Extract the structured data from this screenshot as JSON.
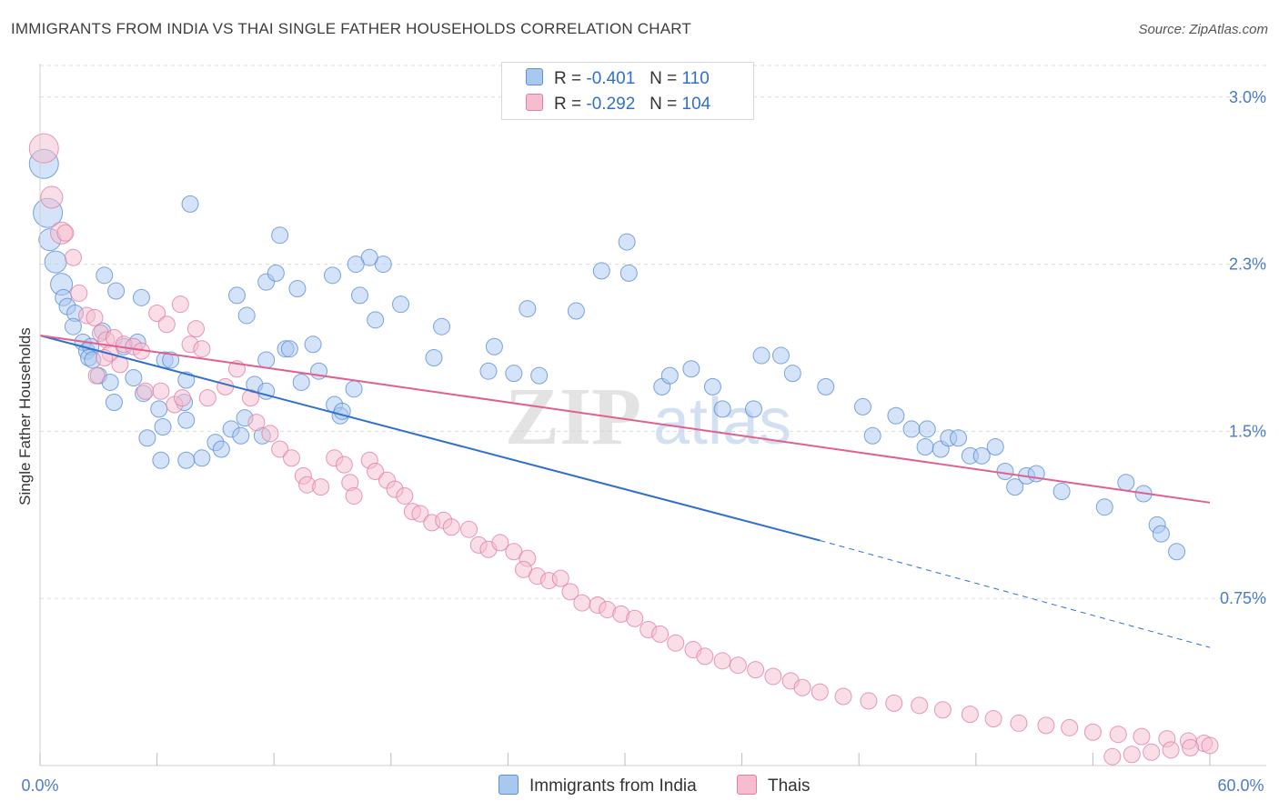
{
  "header": {
    "title": "IMMIGRANTS FROM INDIA VS THAI SINGLE FATHER HOUSEHOLDS CORRELATION CHART",
    "source": "Source: ZipAtlas.com"
  },
  "legend": {
    "series1": {
      "r_label": "R =",
      "r_value": "-0.401",
      "n_label": "N =",
      "n_value": "110"
    },
    "series2": {
      "r_label": "R =",
      "r_value": "-0.292",
      "n_label": "N =",
      "n_value": "104"
    }
  },
  "colors": {
    "india_fill": "#a9c8f0",
    "india_stroke": "#5b8fd6",
    "india_line": "#2e6fd0",
    "thai_fill": "#f6bdd0",
    "thai_stroke": "#e07fa3",
    "thai_line": "#e0608f",
    "axis_text": "#4a7cc9"
  },
  "chart_data": {
    "type": "scatter",
    "title": "IMMIGRANTS FROM INDIA VS THAI SINGLE FATHER HOUSEHOLDS CORRELATION CHART",
    "xlabel": "",
    "ylabel": "Single Father Households",
    "xlim": [
      0,
      60
    ],
    "ylim": [
      0,
      3.15
    ],
    "x_tick_labels": [
      "0.0%",
      "60.0%"
    ],
    "y_ticks": [
      0.75,
      1.5,
      2.25,
      3.0
    ],
    "y_tick_labels": [
      "0.75%",
      "1.5%",
      "2.3%",
      "3.0%"
    ],
    "grid": true,
    "legend_position": "top-center",
    "watermark": "ZIPatlas",
    "series": [
      {
        "name": "Immigrants from India",
        "color": "#a9c8f0",
        "R": -0.401,
        "N": 110,
        "trend": {
          "x": [
            0,
            40
          ],
          "y": [
            1.93,
            1.01
          ],
          "dashed_to": [
            60,
            0.53
          ]
        },
        "points": [
          [
            0.2,
            2.7
          ],
          [
            0.4,
            2.48
          ],
          [
            0.5,
            2.36
          ],
          [
            0.8,
            2.26
          ],
          [
            1.1,
            2.16
          ],
          [
            1.2,
            2.1
          ],
          [
            1.4,
            2.06
          ],
          [
            1.8,
            2.03
          ],
          [
            1.7,
            1.97
          ],
          [
            2.2,
            1.9
          ],
          [
            2.4,
            1.86
          ],
          [
            2.6,
            1.88
          ],
          [
            3.3,
            2.2
          ],
          [
            3.9,
            2.13
          ],
          [
            3.2,
            1.95
          ],
          [
            2.5,
            1.83
          ],
          [
            2.7,
            1.82
          ],
          [
            4.3,
            1.88
          ],
          [
            5.2,
            2.1
          ],
          [
            5.0,
            1.9
          ],
          [
            6.4,
            1.82
          ],
          [
            6.7,
            1.82
          ],
          [
            7.5,
            1.73
          ],
          [
            3.0,
            1.75
          ],
          [
            3.6,
            1.72
          ],
          [
            3.8,
            1.63
          ],
          [
            4.8,
            1.74
          ],
          [
            5.3,
            1.67
          ],
          [
            6.1,
            1.6
          ],
          [
            7.4,
            1.63
          ],
          [
            7.5,
            1.55
          ],
          [
            8.3,
            1.38
          ],
          [
            6.3,
            1.52
          ],
          [
            6.2,
            1.37
          ],
          [
            5.5,
            1.47
          ],
          [
            7.5,
            1.37
          ],
          [
            9.0,
            1.45
          ],
          [
            9.3,
            1.42
          ],
          [
            9.8,
            1.51
          ],
          [
            10.3,
            1.48
          ],
          [
            11.4,
            1.48
          ],
          [
            10.5,
            1.56
          ],
          [
            11.0,
            1.71
          ],
          [
            11.6,
            1.68
          ],
          [
            11.6,
            1.82
          ],
          [
            12.6,
            1.87
          ],
          [
            12.8,
            1.87
          ],
          [
            13.4,
            1.72
          ],
          [
            14.3,
            1.77
          ],
          [
            14.0,
            1.89
          ],
          [
            15.1,
            1.62
          ],
          [
            15.4,
            1.57
          ],
          [
            16.1,
            1.69
          ],
          [
            15.5,
            1.59
          ],
          [
            17.2,
            2.0
          ],
          [
            17.6,
            2.25
          ],
          [
            16.9,
            2.28
          ],
          [
            16.2,
            2.25
          ],
          [
            12.3,
            2.38
          ],
          [
            7.7,
            2.52
          ],
          [
            10.1,
            2.11
          ],
          [
            10.6,
            2.02
          ],
          [
            11.6,
            2.17
          ],
          [
            12.1,
            2.21
          ],
          [
            13.2,
            2.14
          ],
          [
            15.0,
            2.2
          ],
          [
            16.4,
            2.11
          ],
          [
            18.5,
            2.07
          ],
          [
            20.2,
            1.83
          ],
          [
            20.6,
            1.97
          ],
          [
            23.0,
            1.77
          ],
          [
            23.3,
            1.88
          ],
          [
            24.3,
            1.76
          ],
          [
            25.6,
            1.75
          ],
          [
            25.0,
            2.05
          ],
          [
            27.5,
            2.04
          ],
          [
            28.8,
            2.22
          ],
          [
            30.1,
            2.35
          ],
          [
            30.2,
            2.21
          ],
          [
            31.9,
            1.7
          ],
          [
            33.4,
            1.78
          ],
          [
            32.3,
            1.75
          ],
          [
            34.5,
            1.7
          ],
          [
            35.0,
            1.6
          ],
          [
            36.6,
            1.6
          ],
          [
            37.0,
            1.84
          ],
          [
            38.0,
            1.84
          ],
          [
            38.6,
            1.76
          ],
          [
            40.3,
            1.7
          ],
          [
            42.2,
            1.61
          ],
          [
            42.7,
            1.48
          ],
          [
            43.9,
            1.57
          ],
          [
            44.7,
            1.51
          ],
          [
            45.5,
            1.51
          ],
          [
            45.4,
            1.43
          ],
          [
            46.2,
            1.42
          ],
          [
            46.6,
            1.47
          ],
          [
            47.1,
            1.47
          ],
          [
            47.7,
            1.39
          ],
          [
            48.3,
            1.39
          ],
          [
            49.0,
            1.43
          ],
          [
            49.5,
            1.32
          ],
          [
            50.0,
            1.25
          ],
          [
            50.6,
            1.3
          ],
          [
            51.1,
            1.31
          ],
          [
            52.4,
            1.23
          ],
          [
            54.6,
            1.16
          ],
          [
            55.7,
            1.27
          ],
          [
            56.6,
            1.22
          ],
          [
            57.3,
            1.08
          ],
          [
            57.5,
            1.04
          ],
          [
            58.3,
            0.96
          ]
        ]
      },
      {
        "name": "Thais",
        "color": "#f6bdd0",
        "R": -0.292,
        "N": 104,
        "trend": {
          "x": [
            0,
            60
          ],
          "y": [
            1.93,
            1.18
          ]
        },
        "points": [
          [
            0.2,
            2.77
          ],
          [
            0.6,
            2.55
          ],
          [
            1.1,
            2.39
          ],
          [
            1.3,
            2.39
          ],
          [
            1.7,
            2.28
          ],
          [
            2.0,
            2.12
          ],
          [
            2.4,
            2.02
          ],
          [
            2.8,
            2.01
          ],
          [
            3.1,
            1.94
          ],
          [
            3.4,
            1.91
          ],
          [
            3.8,
            1.92
          ],
          [
            4.3,
            1.89
          ],
          [
            4.8,
            1.88
          ],
          [
            3.6,
            1.85
          ],
          [
            4.1,
            1.8
          ],
          [
            2.9,
            1.75
          ],
          [
            3.3,
            1.83
          ],
          [
            5.2,
            1.86
          ],
          [
            6.0,
            2.03
          ],
          [
            6.5,
            1.98
          ],
          [
            7.2,
            2.07
          ],
          [
            8.0,
            1.96
          ],
          [
            7.7,
            1.89
          ],
          [
            8.3,
            1.87
          ],
          [
            5.4,
            1.68
          ],
          [
            6.2,
            1.68
          ],
          [
            6.9,
            1.62
          ],
          [
            7.3,
            1.65
          ],
          [
            8.6,
            1.65
          ],
          [
            9.5,
            1.7
          ],
          [
            10.1,
            1.78
          ],
          [
            10.8,
            1.65
          ],
          [
            11.1,
            1.54
          ],
          [
            11.8,
            1.49
          ],
          [
            12.3,
            1.42
          ],
          [
            12.9,
            1.38
          ],
          [
            13.5,
            1.3
          ],
          [
            13.7,
            1.26
          ],
          [
            14.4,
            1.25
          ],
          [
            15.1,
            1.38
          ],
          [
            15.6,
            1.35
          ],
          [
            15.9,
            1.27
          ],
          [
            16.1,
            1.21
          ],
          [
            16.9,
            1.37
          ],
          [
            17.2,
            1.32
          ],
          [
            17.8,
            1.28
          ],
          [
            18.2,
            1.24
          ],
          [
            18.7,
            1.21
          ],
          [
            19.1,
            1.14
          ],
          [
            19.5,
            1.13
          ],
          [
            20.1,
            1.09
          ],
          [
            20.7,
            1.1
          ],
          [
            21.1,
            1.07
          ],
          [
            22.0,
            1.06
          ],
          [
            22.5,
            0.99
          ],
          [
            23.0,
            0.97
          ],
          [
            23.6,
            1.0
          ],
          [
            24.3,
            0.96
          ],
          [
            25.0,
            0.93
          ],
          [
            24.8,
            0.88
          ],
          [
            25.5,
            0.85
          ],
          [
            26.1,
            0.83
          ],
          [
            26.7,
            0.84
          ],
          [
            27.2,
            0.78
          ],
          [
            27.8,
            0.73
          ],
          [
            28.6,
            0.72
          ],
          [
            29.1,
            0.7
          ],
          [
            29.8,
            0.68
          ],
          [
            30.5,
            0.66
          ],
          [
            31.2,
            0.61
          ],
          [
            31.8,
            0.59
          ],
          [
            32.6,
            0.55
          ],
          [
            33.5,
            0.52
          ],
          [
            34.1,
            0.49
          ],
          [
            35.0,
            0.47
          ],
          [
            35.8,
            0.45
          ],
          [
            36.7,
            0.43
          ],
          [
            37.6,
            0.4
          ],
          [
            38.5,
            0.38
          ],
          [
            39.1,
            0.35
          ],
          [
            40.0,
            0.33
          ],
          [
            41.2,
            0.31
          ],
          [
            42.5,
            0.29
          ],
          [
            43.8,
            0.28
          ],
          [
            45.1,
            0.27
          ],
          [
            46.3,
            0.25
          ],
          [
            47.7,
            0.23
          ],
          [
            48.9,
            0.21
          ],
          [
            50.2,
            0.19
          ],
          [
            51.6,
            0.18
          ],
          [
            52.8,
            0.17
          ],
          [
            54.0,
            0.15
          ],
          [
            55.3,
            0.14
          ],
          [
            56.5,
            0.13
          ],
          [
            57.8,
            0.12
          ],
          [
            58.9,
            0.11
          ],
          [
            59.7,
            0.1
          ],
          [
            60.0,
            0.09
          ],
          [
            59.0,
            0.08
          ],
          [
            58.0,
            0.07
          ],
          [
            57.0,
            0.06
          ],
          [
            56.0,
            0.05
          ],
          [
            55.0,
            0.04
          ]
        ]
      }
    ]
  },
  "bottom_legend": {
    "item1": "Immigrants from India",
    "item2": "Thais"
  }
}
